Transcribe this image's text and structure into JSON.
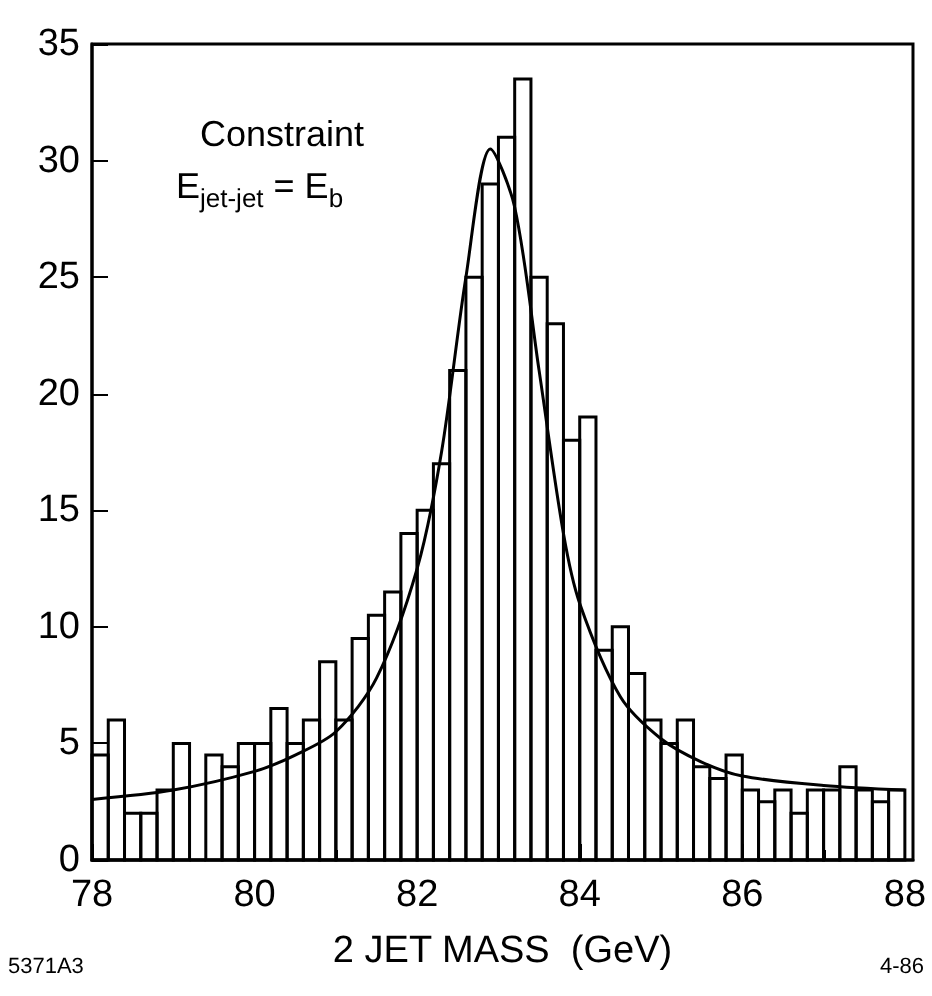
{
  "chart_data": {
    "type": "histogram",
    "xlabel": "2 JET MASS  (GeV)",
    "bins": [
      78,
      78.2,
      78.4,
      78.6,
      78.8,
      79,
      79.2,
      79.4,
      79.6,
      79.8,
      80,
      80.2,
      80.4,
      80.6,
      80.8,
      81,
      81.2,
      81.4,
      81.6,
      81.8,
      82,
      82.2,
      82.4,
      82.6,
      82.8,
      83,
      83.2,
      83.4,
      83.6,
      83.8,
      84,
      84.2,
      84.4,
      84.6,
      84.8,
      85,
      85.2,
      85.4,
      85.6,
      85.8,
      86,
      86.2,
      86.4,
      86.6,
      86.8,
      87,
      87.2,
      87.4,
      87.6,
      87.8,
      88
    ],
    "values": [
      4.5,
      6,
      2,
      2,
      3,
      5,
      0,
      4.5,
      4,
      5,
      5,
      6.5,
      5,
      6,
      8.5,
      6,
      9.5,
      10.5,
      11.5,
      14,
      15,
      17,
      21,
      25,
      29,
      31,
      33.5,
      25,
      23,
      18,
      19,
      9,
      10,
      8,
      6,
      5,
      6,
      4,
      3.5,
      4.5,
      3,
      2.5,
      3,
      2,
      3,
      3,
      4,
      3,
      2.5,
      3
    ],
    "color": "#000000",
    "series": [
      {
        "type": "line",
        "color": "#000000",
        "x": [
          78,
          79,
          80,
          80.5,
          81,
          81.5,
          82,
          82.3,
          82.6,
          82.9,
          83.2,
          83.5,
          83.8,
          84,
          84.5,
          85,
          85.5,
          86,
          87,
          88
        ],
        "values": [
          2.6,
          3,
          3.8,
          4.5,
          5.5,
          7.8,
          12.5,
          17.5,
          25,
          30.5,
          28,
          21,
          14,
          11,
          7,
          5.2,
          4.2,
          3.6,
          3.2,
          3
        ]
      }
    ],
    "xlim": [
      78,
      88.1
    ],
    "xticks": [
      78,
      80,
      82,
      84,
      86,
      88
    ],
    "ylim": [
      0,
      35
    ],
    "yticks": [
      0,
      5,
      10,
      15,
      20,
      25,
      30,
      35
    ],
    "grid": false,
    "annotations": [
      "Constraint",
      "E$_{jet-jet}$ = E$_{b}$",
      "5371A3",
      "4-86"
    ]
  }
}
